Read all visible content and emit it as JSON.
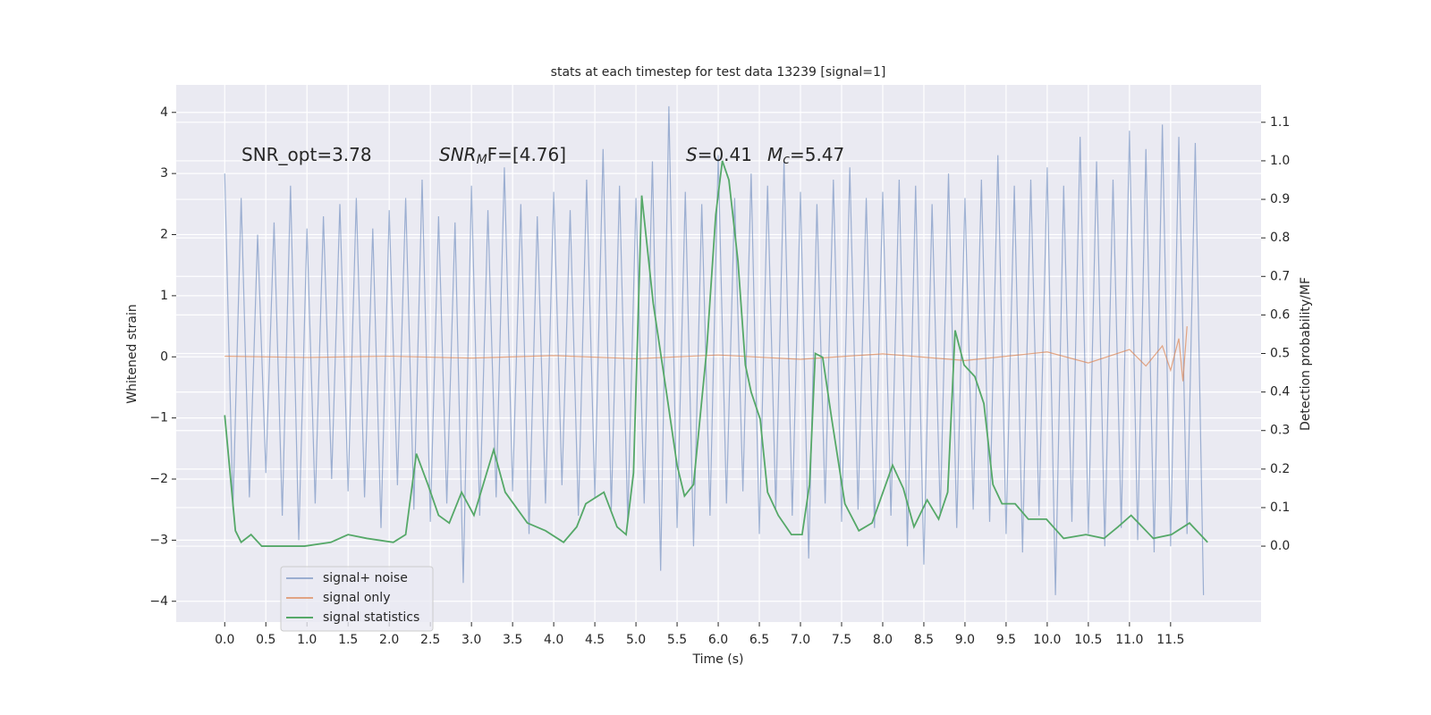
{
  "chart_data": {
    "type": "line",
    "title": "stats at each timestep for test data 13239 [signal=1]",
    "xlabel": "Time (s)",
    "ylabel": "Whitened strain",
    "y2label": "Detection probability/MF",
    "annotations": [
      [
        {
          "text": "SNR_opt=3.78"
        }
      ],
      [
        {
          "text": "SNR",
          "italic": true
        },
        {
          "text": "M",
          "italic": true,
          "sub": true
        },
        {
          "text": "F=[4.76]"
        }
      ],
      [
        {
          "text": "S",
          "italic": true
        },
        {
          "text": "=0.41"
        }
      ],
      [
        {
          "text": "M",
          "italic": true
        },
        {
          "text": "c",
          "italic": true,
          "sub": true
        },
        {
          "text": "=5.47"
        }
      ]
    ],
    "xlim": [
      -0.59,
      12.6
    ],
    "ylim": [
      -4.34,
      4.45
    ],
    "y2lim": [
      -0.197,
      1.197
    ],
    "xticks": [
      {
        "value": 0,
        "label": "0.0"
      },
      0.5,
      {
        "value": 1,
        "label": "1.0"
      },
      1.5,
      {
        "value": 2,
        "label": "2.0"
      },
      2.5,
      {
        "value": 3,
        "label": "3.0"
      },
      3.5,
      {
        "value": 4,
        "label": "4.0"
      },
      4.5,
      {
        "value": 5,
        "label": "5.0"
      },
      5.5,
      {
        "value": 6,
        "label": "6.0"
      },
      6.5,
      {
        "value": 7,
        "label": "7.0"
      },
      7.5,
      {
        "value": 8,
        "label": "8.0"
      },
      8.5,
      {
        "value": 9,
        "label": "9.0"
      },
      9.5,
      {
        "value": 10,
        "label": "10.0"
      },
      10.5,
      {
        "value": 11,
        "label": "11.0"
      },
      11.5
    ],
    "yticks": [
      {
        "value": -4,
        "label": "−4"
      },
      {
        "value": -3,
        "label": "−3"
      },
      {
        "value": -2,
        "label": "−2"
      },
      {
        "value": -1,
        "label": "−1"
      },
      0,
      1,
      2,
      3,
      4
    ],
    "y2ticks": [
      {
        "value": 0,
        "label": "0.0"
      },
      0.1,
      0.2,
      0.3,
      0.4,
      0.5,
      0.6,
      0.7,
      0.8,
      0.9,
      {
        "value": 1,
        "label": "1.0"
      },
      1.1
    ],
    "grid": true,
    "legend": "lower left",
    "series": [
      {
        "name": "signal+ noise",
        "color": "#4c72b0",
        "alpha": 0.5,
        "x": [
          0,
          0.1,
          0.2,
          0.3,
          0.4,
          0.5,
          0.6,
          0.7,
          0.8,
          0.9,
          1,
          1.1,
          1.2,
          1.3,
          1.4,
          1.5,
          1.6,
          1.7,
          1.8,
          1.9,
          2,
          2.1,
          2.2,
          2.3,
          2.4,
          2.5,
          2.6,
          2.7,
          2.8,
          2.9,
          3,
          3.1,
          3.2,
          3.3,
          3.4,
          3.5,
          3.6,
          3.7,
          3.8,
          3.9,
          4,
          4.1,
          4.2,
          4.3,
          4.4,
          4.5,
          4.6,
          4.7,
          4.8,
          4.9,
          5,
          5.1,
          5.2,
          5.3,
          5.4,
          5.5,
          5.6,
          5.7,
          5.8,
          5.9,
          6,
          6.1,
          6.2,
          6.3,
          6.4,
          6.5,
          6.6,
          6.7,
          6.8,
          6.9,
          7,
          7.1,
          7.2,
          7.3,
          7.4,
          7.5,
          7.6,
          7.7,
          7.8,
          7.9,
          8,
          8.1,
          8.2,
          8.3,
          8.4,
          8.5,
          8.6,
          8.7,
          8.8,
          8.9,
          9,
          9.1,
          9.2,
          9.3,
          9.4,
          9.5,
          9.6,
          9.7,
          9.8,
          9.9,
          10,
          10.1,
          10.2,
          10.3,
          10.4,
          10.5,
          10.6,
          10.7,
          10.8,
          10.9,
          11,
          11.1,
          11.2,
          11.3,
          11.4,
          11.5,
          11.6,
          11.7,
          11.8,
          11.9
        ],
        "values": [
          3.0,
          -2.5,
          2.6,
          -2.3,
          2.0,
          -1.9,
          2.2,
          -2.6,
          2.8,
          -3.0,
          2.1,
          -2.4,
          2.3,
          -2.0,
          2.5,
          -2.2,
          2.6,
          -2.3,
          2.1,
          -2.8,
          2.4,
          -2.1,
          2.6,
          -2.5,
          2.9,
          -2.7,
          2.3,
          -2.4,
          2.2,
          -3.7,
          2.8,
          -2.6,
          2.4,
          -2.3,
          3.1,
          -2.2,
          2.5,
          -2.9,
          2.3,
          -2.4,
          2.7,
          -2.1,
          2.4,
          -2.6,
          2.9,
          -2.3,
          3.4,
          -2.5,
          2.8,
          -2.7,
          2.6,
          -2.4,
          3.2,
          -3.5,
          4.1,
          -2.8,
          2.7,
          -3.1,
          2.5,
          -2.6,
          3.3,
          -2.4,
          2.6,
          -2.2,
          3.0,
          -2.9,
          2.8,
          -2.5,
          3.2,
          -2.6,
          2.7,
          -3.3,
          2.5,
          -2.4,
          2.9,
          -2.7,
          3.1,
          -2.5,
          2.6,
          -2.8,
          2.7,
          -2.6,
          2.9,
          -3.1,
          2.8,
          -3.4,
          2.5,
          -2.6,
          3.0,
          -2.8,
          2.6,
          -2.5,
          2.9,
          -2.7,
          3.3,
          -2.9,
          2.8,
          -3.2,
          2.9,
          -2.6,
          3.1,
          -3.9,
          2.8,
          -2.7,
          3.6,
          -2.9,
          3.2,
          -3.1,
          2.9,
          -2.8,
          3.7,
          -3.0,
          3.4,
          -3.2,
          3.8,
          -3.1,
          3.6,
          -2.9,
          3.5,
          -3.9
        ]
      },
      {
        "name": "signal only",
        "color": "#dd8452",
        "alpha": 0.7,
        "x": [
          0,
          1,
          2,
          3,
          4,
          5,
          6,
          7,
          8,
          9,
          10,
          10.5,
          11,
          11.2,
          11.4,
          11.5,
          11.6,
          11.65,
          11.7
        ],
        "values": [
          0.01,
          -0.01,
          0.01,
          -0.02,
          0.02,
          -0.03,
          0.03,
          -0.04,
          0.05,
          -0.06,
          0.08,
          -0.1,
          0.12,
          -0.15,
          0.18,
          -0.22,
          0.3,
          -0.4,
          0.5
        ]
      },
      {
        "name": "signal statistics",
        "color": "#55a868",
        "alpha": 1,
        "axis": "y2",
        "x": [
          0,
          0.13,
          0.2,
          0.32,
          0.45,
          0.64,
          0.97,
          1.29,
          1.5,
          1.73,
          2.05,
          2.2,
          2.33,
          2.47,
          2.6,
          2.73,
          2.88,
          3.03,
          3.27,
          3.41,
          3.68,
          3.9,
          4.12,
          4.28,
          4.39,
          4.61,
          4.77,
          4.88,
          4.97,
          5.07,
          5.21,
          5.37,
          5.5,
          5.59,
          5.7,
          5.86,
          5.97,
          6.05,
          6.13,
          6.24,
          6.33,
          6.4,
          6.51,
          6.6,
          6.73,
          6.89,
          7.02,
          7.11,
          7.18,
          7.27,
          7.38,
          7.54,
          7.71,
          7.87,
          8.12,
          8.25,
          8.38,
          8.54,
          8.68,
          8.79,
          8.88,
          8.99,
          9.12,
          9.23,
          9.34,
          9.45,
          9.61,
          9.77,
          9.99,
          10.2,
          10.47,
          10.69,
          10.86,
          11.02,
          11.29,
          11.51,
          11.73,
          11.95
        ],
        "values": [
          0.34,
          0.04,
          0.01,
          0.03,
          0.0,
          0.0,
          0.0,
          0.01,
          0.03,
          0.02,
          0.01,
          0.03,
          0.24,
          0.16,
          0.08,
          0.06,
          0.14,
          0.08,
          0.25,
          0.14,
          0.06,
          0.04,
          0.01,
          0.05,
          0.11,
          0.14,
          0.05,
          0.03,
          0.19,
          0.91,
          0.63,
          0.4,
          0.21,
          0.13,
          0.16,
          0.51,
          0.86,
          1.0,
          0.95,
          0.74,
          0.47,
          0.4,
          0.33,
          0.14,
          0.08,
          0.03,
          0.03,
          0.16,
          0.5,
          0.49,
          0.33,
          0.11,
          0.04,
          0.06,
          0.21,
          0.15,
          0.05,
          0.12,
          0.07,
          0.14,
          0.56,
          0.47,
          0.44,
          0.37,
          0.16,
          0.11,
          0.11,
          0.07,
          0.07,
          0.02,
          0.03,
          0.02,
          0.05,
          0.08,
          0.02,
          0.03,
          0.06,
          0.01
        ]
      }
    ]
  }
}
